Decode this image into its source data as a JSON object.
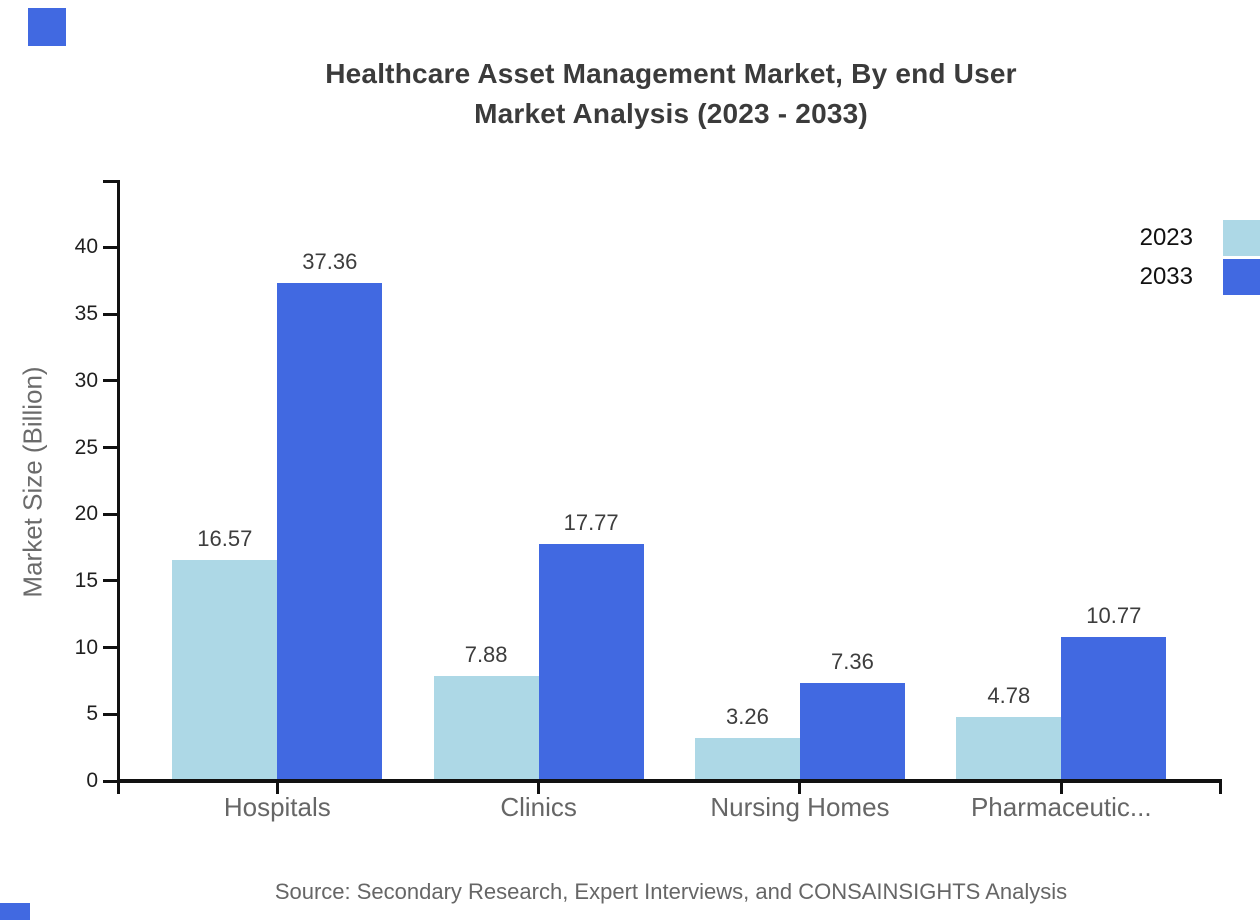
{
  "title": {
    "line1": "Healthcare Asset Management Market, By end User",
    "line2": "Market Analysis (2023 - 2033)"
  },
  "source_text": "Source: Secondary Research, Expert Interviews, and CONSAINSIGHTS Analysis",
  "colors": {
    "series_2023": "#ADD8E6",
    "series_2033": "#4169E1",
    "axis": "#111111",
    "title_text": "#3b3b3b",
    "category_text": "#666666",
    "value_label_text": "#3d3d3d",
    "muted_text": "#666666",
    "decor": "#4169E1"
  },
  "legend": {
    "position": "top-right",
    "entries": [
      {
        "label": "2023",
        "color": "#ADD8E6"
      },
      {
        "label": "2033",
        "color": "#4169E1"
      }
    ]
  },
  "chart_data": {
    "type": "bar",
    "title": "Healthcare Asset Management Market, By end User Market Analysis (2023 - 2033)",
    "categories": [
      "Hospitals",
      "Clinics",
      "Nursing Homes",
      "Pharmaceutic..."
    ],
    "series": [
      {
        "name": "2023",
        "color": "#ADD8E6",
        "values": [
          16.57,
          7.88,
          3.26,
          4.78
        ]
      },
      {
        "name": "2033",
        "color": "#4169E1",
        "values": [
          37.36,
          17.77,
          7.36,
          10.77
        ]
      }
    ],
    "xlabel": "",
    "ylabel": "Market Size (Billion)",
    "ylim": [
      0,
      45
    ],
    "yticks": [
      0,
      5,
      10,
      15,
      20,
      25,
      30,
      35,
      40
    ],
    "grid": false,
    "value_labels": true,
    "legend_position": "top-right"
  }
}
